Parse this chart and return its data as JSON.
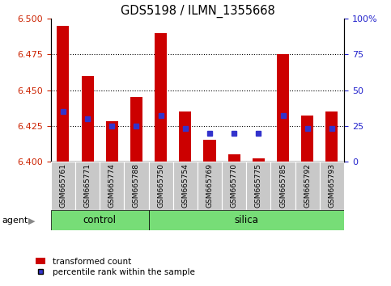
{
  "title": "GDS5198 / ILMN_1355668",
  "samples": [
    "GSM665761",
    "GSM665771",
    "GSM665774",
    "GSM665788",
    "GSM665750",
    "GSM665754",
    "GSM665769",
    "GSM665770",
    "GSM665775",
    "GSM665785",
    "GSM665792",
    "GSM665793"
  ],
  "n_control": 4,
  "transformed_count": [
    6.495,
    6.46,
    6.428,
    6.445,
    6.49,
    6.435,
    6.415,
    6.405,
    6.402,
    6.475,
    6.432,
    6.435
  ],
  "percentile_rank": [
    35,
    30,
    25,
    25,
    32,
    23,
    20,
    20,
    20,
    32,
    23,
    23
  ],
  "ylim_left": [
    6.4,
    6.5
  ],
  "ylim_right": [
    0,
    100
  ],
  "yticks_left": [
    6.4,
    6.425,
    6.45,
    6.475,
    6.5
  ],
  "yticks_right": [
    0,
    25,
    50,
    75,
    100
  ],
  "dotted_pct": [
    25,
    50,
    75
  ],
  "bar_color": "#cc0000",
  "dot_color": "#3333cc",
  "bar_bottom": 6.4,
  "control_color": "#77dd77",
  "silica_color": "#77dd77",
  "tick_bg_color": "#c8c8c8",
  "group_bar_color": "#55cc55",
  "yaxis_left_color": "#cc2200",
  "yaxis_right_color": "#2222cc",
  "legend_bar": "transformed count",
  "legend_dot": "percentile rank within the sample",
  "bar_width": 0.5
}
